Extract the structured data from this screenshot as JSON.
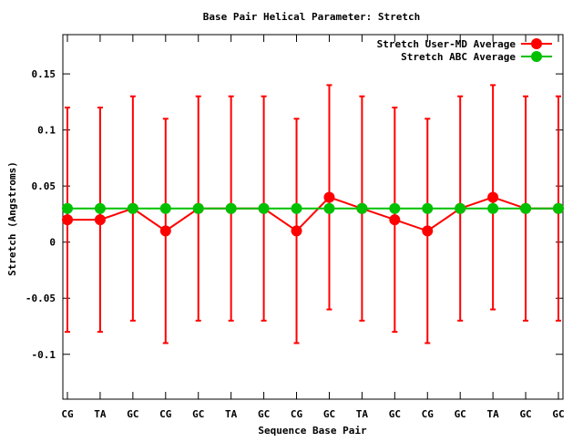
{
  "chart_data": {
    "type": "line",
    "title": "Base Pair Helical Parameter: Stretch",
    "xlabel": "Sequence Base Pair",
    "ylabel": "Stretch (Angstroms)",
    "categories": [
      "CG",
      "TA",
      "GC",
      "CG",
      "GC",
      "TA",
      "GC",
      "CG",
      "GC",
      "TA",
      "GC",
      "CG",
      "GC",
      "TA",
      "GC",
      "GC"
    ],
    "ylim": [
      -0.14,
      0.185
    ],
    "yticks": [
      -0.1,
      -0.05,
      0,
      0.05,
      0.1,
      0.15
    ],
    "ytick_labels": [
      "-0.1",
      "-0.05",
      "0",
      "0.05",
      "0.1",
      "0.15"
    ],
    "grid": false,
    "legend_position": "top-right",
    "series": [
      {
        "name": "Stretch User-MD Average",
        "color": "#ff0000",
        "values": [
          0.02,
          0.02,
          0.03,
          0.01,
          0.03,
          0.03,
          0.03,
          0.01,
          0.04,
          0.03,
          0.02,
          0.01,
          0.03,
          0.04,
          0.03,
          0.03
        ],
        "error_low": [
          -0.08,
          -0.08,
          -0.07,
          -0.09,
          -0.07,
          -0.07,
          -0.07,
          -0.09,
          -0.06,
          -0.07,
          -0.08,
          -0.09,
          -0.07,
          -0.06,
          -0.07,
          -0.07
        ],
        "error_high": [
          0.12,
          0.12,
          0.13,
          0.11,
          0.13,
          0.13,
          0.13,
          0.11,
          0.14,
          0.13,
          0.12,
          0.11,
          0.13,
          0.14,
          0.13,
          0.13
        ]
      },
      {
        "name": "Stretch ABC Average",
        "color": "#00c000",
        "values": [
          0.03,
          0.03,
          0.03,
          0.03,
          0.03,
          0.03,
          0.03,
          0.03,
          0.03,
          0.03,
          0.03,
          0.03,
          0.03,
          0.03,
          0.03,
          0.03
        ]
      }
    ]
  }
}
